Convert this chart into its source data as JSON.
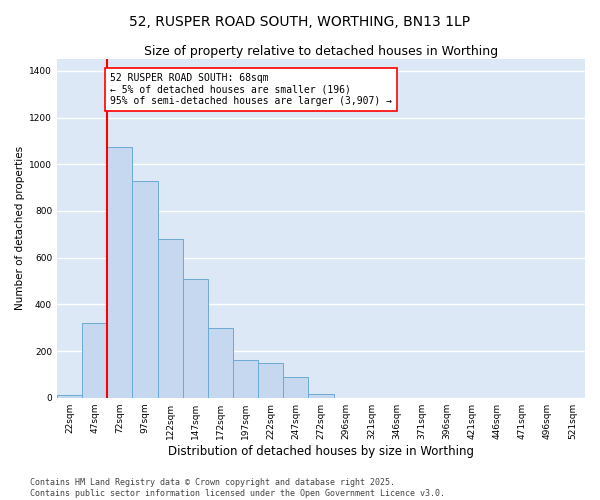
{
  "title": "52, RUSPER ROAD SOUTH, WORTHING, BN13 1LP",
  "subtitle": "Size of property relative to detached houses in Worthing",
  "xlabel": "Distribution of detached houses by size in Worthing",
  "ylabel": "Number of detached properties",
  "bins": [
    "22sqm",
    "47sqm",
    "72sqm",
    "97sqm",
    "122sqm",
    "147sqm",
    "172sqm",
    "197sqm",
    "222sqm",
    "247sqm",
    "272sqm",
    "296sqm",
    "321sqm",
    "346sqm",
    "371sqm",
    "396sqm",
    "421sqm",
    "446sqm",
    "471sqm",
    "496sqm",
    "521sqm"
  ],
  "values": [
    10,
    320,
    1075,
    930,
    680,
    510,
    300,
    160,
    150,
    90,
    15,
    0,
    0,
    0,
    0,
    0,
    0,
    0,
    0,
    0,
    0
  ],
  "bar_color": "#c5d8f0",
  "bar_edge_color": "#6aaad4",
  "vline_color": "red",
  "vline_x_index": 1.5,
  "annotation_text": "52 RUSPER ROAD SOUTH: 68sqm\n← 5% of detached houses are smaller (196)\n95% of semi-detached houses are larger (3,907) →",
  "annotation_box_color": "white",
  "annotation_box_edge_color": "red",
  "ylim": [
    0,
    1450
  ],
  "yticks": [
    0,
    200,
    400,
    600,
    800,
    1000,
    1200,
    1400
  ],
  "bg_color": "#dce8f5",
  "grid_color": "white",
  "footer": "Contains HM Land Registry data © Crown copyright and database right 2025.\nContains public sector information licensed under the Open Government Licence v3.0.",
  "title_fontsize": 10,
  "subtitle_fontsize": 9,
  "xlabel_fontsize": 8.5,
  "ylabel_fontsize": 7.5,
  "tick_fontsize": 6.5,
  "annotation_fontsize": 7,
  "footer_fontsize": 6
}
